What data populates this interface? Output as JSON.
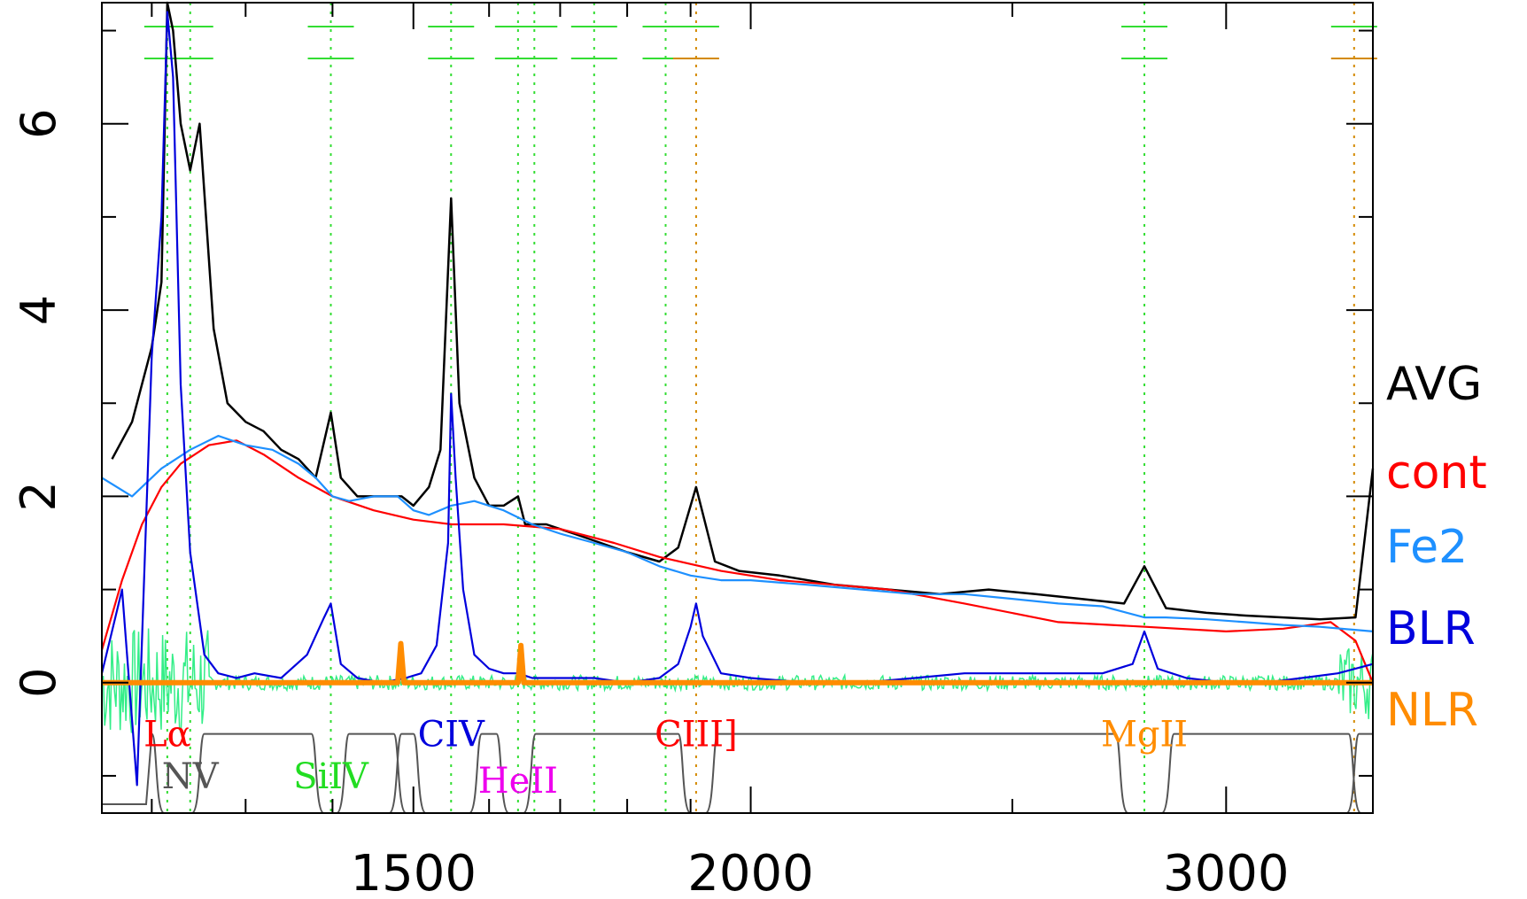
{
  "chart_data": {
    "type": "line",
    "title": "",
    "xlabel": "",
    "ylabel": "",
    "xscale": "log",
    "xlim": [
      1150,
      3400
    ],
    "ylim": [
      -1.4,
      7.3
    ],
    "x_ticks": [
      {
        "value": 1500,
        "label": "1500"
      },
      {
        "value": 2000,
        "label": "2000"
      },
      {
        "value": 3000,
        "label": "3000"
      }
    ],
    "y_ticks": [
      {
        "value": 0,
        "label": "0"
      },
      {
        "value": 2,
        "label": "2"
      },
      {
        "value": 4,
        "label": "4"
      },
      {
        "value": 6,
        "label": "6"
      }
    ],
    "legend": {
      "placement": "right",
      "entries": [
        {
          "label": "AVG",
          "color": "#000000"
        },
        {
          "label": "cont",
          "color": "#ff0000"
        },
        {
          "label": "Fe2",
          "color": "#1e90ff"
        },
        {
          "label": "BLR",
          "color": "#0000dd"
        },
        {
          "label": "NLR",
          "color": "#ff8c00"
        }
      ]
    },
    "line_labels": [
      {
        "text": "Lα",
        "x": 1216,
        "y": -0.55,
        "color": "#ff0000"
      },
      {
        "text": "NV",
        "x": 1240,
        "y": -1.0,
        "color": "#555555"
      },
      {
        "text": "SiIV",
        "x": 1398,
        "y": -1.0,
        "color": "#22dd22"
      },
      {
        "text": "CIV",
        "x": 1549,
        "y": -0.55,
        "color": "#0000dd"
      },
      {
        "text": "HeII",
        "x": 1640,
        "y": -1.05,
        "color": "#ee00ee"
      },
      {
        "text": "CIII]",
        "x": 1909,
        "y": -0.55,
        "color": "#ff0000"
      },
      {
        "text": "MgII",
        "x": 2798,
        "y": -0.55,
        "color": "#ff8c00"
      }
    ],
    "series": [
      {
        "name": "AVG",
        "color": "#000000",
        "x": [
          1160,
          1180,
          1200,
          1210,
          1216,
          1222,
          1230,
          1240,
          1250,
          1265,
          1280,
          1300,
          1320,
          1340,
          1360,
          1380,
          1398,
          1410,
          1430,
          1450,
          1470,
          1485,
          1500,
          1520,
          1535,
          1549,
          1560,
          1580,
          1600,
          1620,
          1640,
          1650,
          1680,
          1720,
          1760,
          1800,
          1850,
          1880,
          1909,
          1940,
          1980,
          2050,
          2150,
          2250,
          2350,
          2450,
          2550,
          2650,
          2750,
          2798,
          2850,
          2950,
          3050,
          3150,
          3250,
          3350,
          3400
        ],
        "y": [
          2.4,
          2.8,
          3.6,
          4.3,
          7.3,
          7.0,
          6.0,
          5.5,
          6.0,
          3.8,
          3.0,
          2.8,
          2.7,
          2.5,
          2.4,
          2.2,
          2.9,
          2.2,
          2.0,
          2.0,
          2.0,
          2.0,
          1.9,
          2.1,
          2.5,
          5.2,
          3.0,
          2.2,
          1.9,
          1.9,
          2.0,
          1.7,
          1.7,
          1.6,
          1.5,
          1.4,
          1.3,
          1.45,
          2.1,
          1.3,
          1.2,
          1.15,
          1.05,
          1.0,
          0.95,
          1.0,
          0.95,
          0.9,
          0.85,
          1.25,
          0.8,
          0.75,
          0.72,
          0.7,
          0.68,
          0.7,
          2.3
        ]
      },
      {
        "name": "cont",
        "color": "#ff0000",
        "x": [
          1150,
          1170,
          1190,
          1210,
          1230,
          1260,
          1290,
          1320,
          1360,
          1400,
          1450,
          1500,
          1550,
          1620,
          1700,
          1780,
          1850,
          1950,
          2050,
          2150,
          2250,
          2400,
          2600,
          2800,
          3000,
          3150,
          3280,
          3350,
          3400
        ],
        "y": [
          0.35,
          1.1,
          1.7,
          2.1,
          2.35,
          2.55,
          2.6,
          2.45,
          2.2,
          2.0,
          1.85,
          1.75,
          1.7,
          1.7,
          1.65,
          1.5,
          1.35,
          1.2,
          1.1,
          1.05,
          1.0,
          0.85,
          0.65,
          0.6,
          0.55,
          0.58,
          0.65,
          0.45,
          0.0
        ]
      },
      {
        "name": "Fe2",
        "color": "#1e90ff",
        "x": [
          1150,
          1180,
          1210,
          1240,
          1270,
          1300,
          1330,
          1360,
          1380,
          1400,
          1420,
          1450,
          1480,
          1500,
          1520,
          1549,
          1580,
          1620,
          1660,
          1700,
          1750,
          1800,
          1850,
          1900,
          1950,
          2000,
          2100,
          2200,
          2300,
          2400,
          2500,
          2600,
          2700,
          2798,
          2850,
          2950,
          3050,
          3150,
          3250,
          3400
        ],
        "y": [
          2.2,
          2.0,
          2.3,
          2.5,
          2.65,
          2.55,
          2.5,
          2.35,
          2.2,
          2.0,
          1.95,
          2.0,
          2.0,
          1.85,
          1.8,
          1.9,
          1.95,
          1.85,
          1.7,
          1.6,
          1.5,
          1.4,
          1.25,
          1.15,
          1.1,
          1.1,
          1.05,
          1.0,
          0.95,
          0.95,
          0.9,
          0.85,
          0.82,
          0.7,
          0.7,
          0.68,
          0.65,
          0.62,
          0.6,
          0.55
        ]
      },
      {
        "name": "BLR",
        "color": "#0000dd",
        "x": [
          1150,
          1170,
          1185,
          1200,
          1210,
          1216,
          1222,
          1230,
          1240,
          1255,
          1270,
          1290,
          1310,
          1340,
          1370,
          1390,
          1398,
          1410,
          1430,
          1460,
          1490,
          1510,
          1530,
          1545,
          1549,
          1555,
          1565,
          1580,
          1600,
          1620,
          1640,
          1660,
          1700,
          1750,
          1800,
          1850,
          1880,
          1900,
          1909,
          1920,
          1950,
          2000,
          2100,
          2200,
          2300,
          2400,
          2500,
          2600,
          2700,
          2770,
          2798,
          2830,
          2900,
          3000,
          3100,
          3200,
          3300,
          3400
        ],
        "y": [
          0.1,
          1.0,
          -1.1,
          3.5,
          5.0,
          7.2,
          6.5,
          3.2,
          1.4,
          0.3,
          0.1,
          0.05,
          0.1,
          0.05,
          0.3,
          0.7,
          0.85,
          0.2,
          0.05,
          0.0,
          0.05,
          0.1,
          0.4,
          1.5,
          3.1,
          2.2,
          1.0,
          0.3,
          0.15,
          0.1,
          0.1,
          0.05,
          0.05,
          0.05,
          0.0,
          0.05,
          0.2,
          0.6,
          0.85,
          0.5,
          0.1,
          0.05,
          0.0,
          0.0,
          0.05,
          0.1,
          0.1,
          0.1,
          0.1,
          0.2,
          0.55,
          0.15,
          0.05,
          0.0,
          0.0,
          0.05,
          0.1,
          0.2
        ]
      },
      {
        "name": "NLR",
        "color": "#ff8c00",
        "x": [
          1150,
          1480,
          1484,
          1488,
          1640,
          1644,
          1648,
          3400
        ],
        "y": [
          0.0,
          0.0,
          0.42,
          0.0,
          0.0,
          0.4,
          0.0,
          0.0
        ]
      }
    ],
    "emission_line_markers": [
      1216,
      1240,
      1398,
      1549,
      1640,
      1663,
      1750,
      1860,
      1909,
      2798,
      3346
    ]
  }
}
